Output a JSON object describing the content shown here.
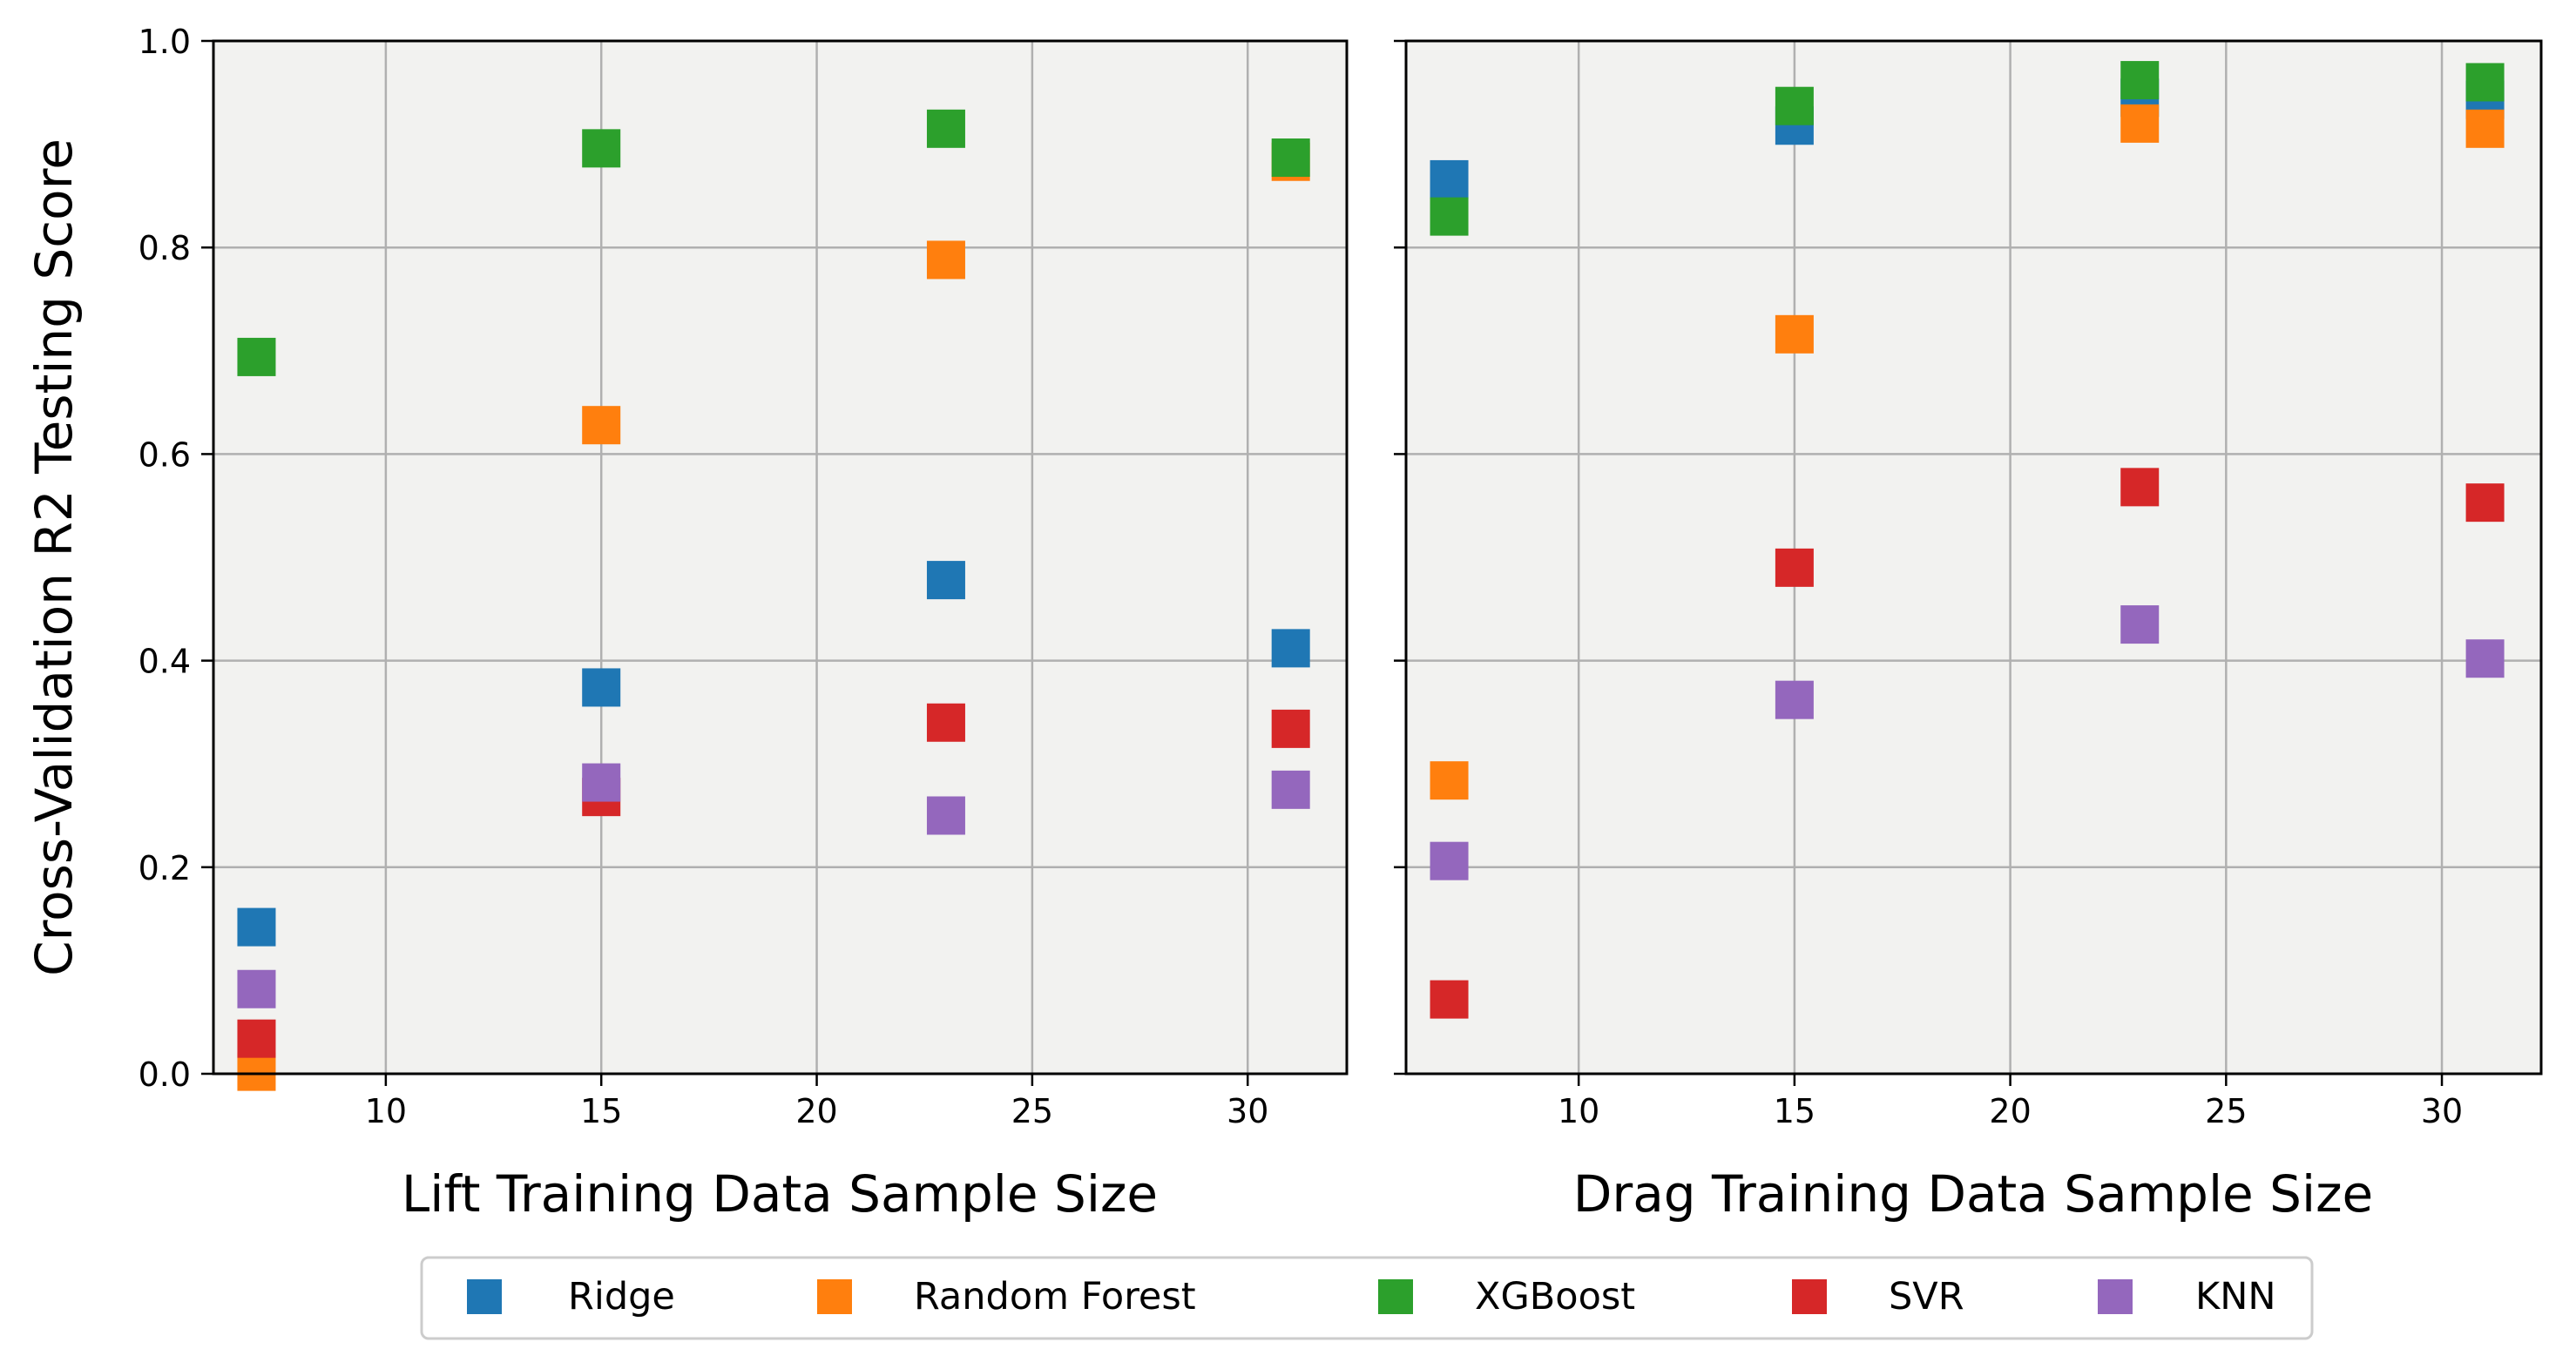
{
  "chart_data": [
    {
      "type": "scatter",
      "panel": "left",
      "title": "",
      "xlabel": "Lift Training Data Sample Size",
      "ylabel": "Cross-Validation R2 Testing Score",
      "xlim": [
        6,
        32.3
      ],
      "ylim": [
        0,
        1.0
      ],
      "xticks": [
        10,
        15,
        20,
        25,
        30
      ],
      "yticks": [
        0.0,
        0.2,
        0.4,
        0.6,
        0.8,
        1.0
      ],
      "xtick_labels": [
        "10",
        "15",
        "20",
        "25",
        "30"
      ],
      "ytick_labels": [
        "0.0",
        "0.2",
        "0.4",
        "0.6",
        "0.8",
        "1.0"
      ],
      "grid": true,
      "x": [
        7,
        15,
        23,
        31
      ],
      "series": [
        {
          "name": "Ridge",
          "color": "#1f77b4",
          "values": [
            0.142,
            0.374,
            0.478,
            0.412
          ]
        },
        {
          "name": "Random Forest",
          "color": "#ff7f0e",
          "values": [
            0.002,
            0.628,
            0.788,
            0.883
          ]
        },
        {
          "name": "XGBoost",
          "color": "#2ca02c",
          "values": [
            0.694,
            0.896,
            0.915,
            0.887
          ]
        },
        {
          "name": "SVR",
          "color": "#d62728",
          "values": [
            0.034,
            0.268,
            0.34,
            0.334
          ]
        },
        {
          "name": "KNN",
          "color": "#9467bd",
          "values": [
            0.082,
            0.282,
            0.25,
            0.275
          ]
        }
      ]
    },
    {
      "type": "scatter",
      "panel": "right",
      "title": "",
      "xlabel": "Drag Training Data Sample Size",
      "ylabel": "",
      "xlim": [
        6,
        32.3
      ],
      "ylim": [
        0,
        1.0
      ],
      "xticks": [
        10,
        15,
        20,
        25,
        30
      ],
      "yticks": [
        0.0,
        0.2,
        0.4,
        0.6,
        0.8,
        1.0
      ],
      "xtick_labels": [
        "10",
        "15",
        "20",
        "25",
        "30"
      ],
      "ytick_labels": [],
      "grid": true,
      "x": [
        7,
        15,
        23,
        31
      ],
      "series": [
        {
          "name": "Ridge",
          "color": "#1f77b4",
          "values": [
            0.866,
            0.918,
            0.945,
            0.943
          ]
        },
        {
          "name": "Random Forest",
          "color": "#ff7f0e",
          "values": [
            0.284,
            0.716,
            0.92,
            0.915
          ]
        },
        {
          "name": "XGBoost",
          "color": "#2ca02c",
          "values": [
            0.83,
            0.937,
            0.962,
            0.96
          ]
        },
        {
          "name": "SVR",
          "color": "#d62728",
          "values": [
            0.072,
            0.49,
            0.568,
            0.553
          ]
        },
        {
          "name": "KNN",
          "color": "#9467bd",
          "values": [
            0.206,
            0.362,
            0.435,
            0.402
          ]
        }
      ]
    }
  ],
  "legend": {
    "placement": "bottom-center",
    "items": [
      {
        "label": "Ridge",
        "color": "#1f77b4"
      },
      {
        "label": "Random Forest",
        "color": "#ff7f0e"
      },
      {
        "label": "XGBoost",
        "color": "#2ca02c"
      },
      {
        "label": "SVR",
        "color": "#d62728"
      },
      {
        "label": "KNN",
        "color": "#9467bd"
      }
    ]
  },
  "style": {
    "plot_bg": "#f2f2f0",
    "grid_color": "#b0b0b0",
    "frame_color": "#000000"
  }
}
